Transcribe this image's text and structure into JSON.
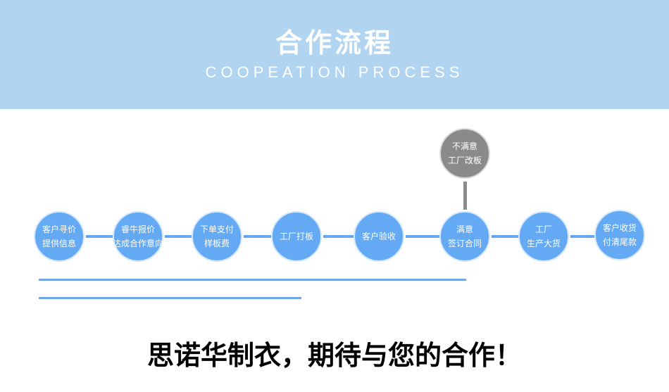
{
  "header": {
    "title": "合作流程",
    "subtitle": "COOPEATION PROCESS"
  },
  "steps": [
    {
      "l1": "客户寻价",
      "l2": "提供信息"
    },
    {
      "l1": "睿牛报价",
      "l2": "达成合作意向"
    },
    {
      "l1": "下单支付",
      "l2": "样板费"
    },
    {
      "l1": "工厂打板",
      "l2": ""
    },
    {
      "l1": "客户验收",
      "l2": ""
    },
    {
      "l1": "满意",
      "l2": "签订合同"
    },
    {
      "l1": "工厂",
      "l2": "生产大货"
    },
    {
      "l1": "客户收货",
      "l2": "付清尾款"
    }
  ],
  "branch": {
    "l1": "不满意",
    "l2": "工厂改板"
  },
  "slogan": "思诺华制衣，期待与您的合作！",
  "colors": {
    "band": "#b1d4f1",
    "step": "#64a9f3",
    "branch": "#8a8a8a"
  }
}
